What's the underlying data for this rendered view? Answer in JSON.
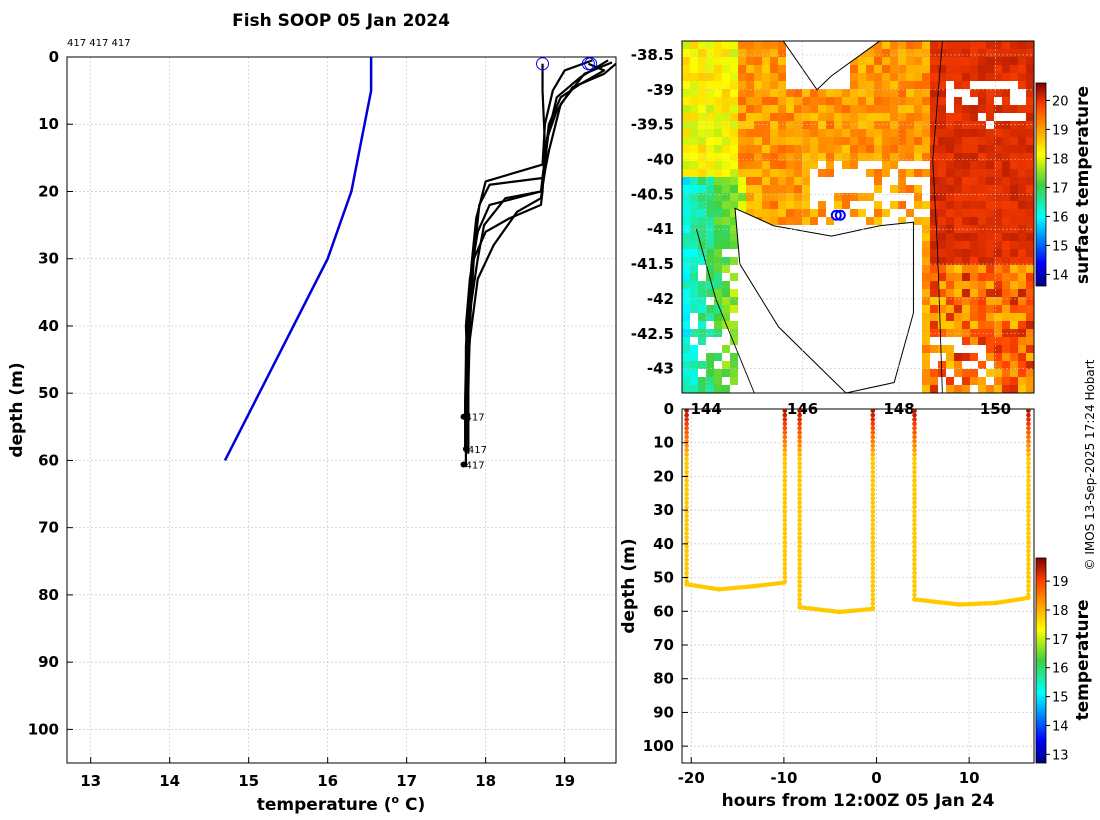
{
  "profile_chart": {
    "type": "line",
    "title": "Fish SOOP 05 Jan 2024",
    "xlabel_main": "temperature (",
    "xlabel_sup": "o",
    "xlabel_end": " C)",
    "ylabel": "depth (m)",
    "xlim": [
      12.7,
      19.65
    ],
    "ylim": [
      105,
      0
    ],
    "xticks": [
      13,
      14,
      15,
      16,
      17,
      18,
      19
    ],
    "yticks": [
      0,
      10,
      20,
      30,
      40,
      50,
      60,
      70,
      80,
      90,
      100
    ],
    "top_label": "417 417 417",
    "climatology": {
      "name": "climatology",
      "color": "#0000dd",
      "points": [
        [
          16.55,
          0
        ],
        [
          16.55,
          5
        ],
        [
          16.3,
          20
        ],
        [
          16.0,
          30
        ],
        [
          14.7,
          60
        ]
      ]
    },
    "profiles": [
      {
        "points": [
          [
            18.72,
            1
          ],
          [
            18.72,
            5
          ],
          [
            18.75,
            13
          ],
          [
            18.72,
            20
          ],
          [
            18.7,
            22
          ],
          [
            18.3,
            24
          ],
          [
            18.0,
            26
          ],
          [
            17.85,
            30
          ],
          [
            17.8,
            36
          ],
          [
            17.75,
            43
          ],
          [
            17.75,
            50
          ],
          [
            17.75,
            54
          ]
        ]
      },
      {
        "points": [
          [
            19.3,
            1
          ],
          [
            19.5,
            2
          ],
          [
            19.2,
            4
          ],
          [
            18.95,
            6
          ],
          [
            18.8,
            10
          ],
          [
            18.75,
            15
          ],
          [
            18.7,
            20
          ],
          [
            18.05,
            22
          ],
          [
            17.9,
            26
          ],
          [
            17.8,
            33
          ],
          [
            17.75,
            40
          ],
          [
            17.78,
            50
          ],
          [
            17.78,
            59
          ]
        ]
      },
      {
        "points": [
          [
            19.65,
            1
          ],
          [
            19.5,
            2.5
          ],
          [
            19.1,
            4.5
          ],
          [
            18.9,
            8
          ],
          [
            18.78,
            12
          ],
          [
            18.75,
            17
          ],
          [
            18.7,
            21
          ],
          [
            18.4,
            23
          ],
          [
            18.1,
            28
          ],
          [
            17.9,
            33
          ],
          [
            17.8,
            42
          ],
          [
            17.75,
            52
          ],
          [
            17.75,
            61
          ]
        ]
      },
      {
        "points": [
          [
            19.55,
            0.5
          ],
          [
            19.2,
            3
          ],
          [
            18.9,
            6
          ],
          [
            18.8,
            11
          ],
          [
            18.72,
            18
          ],
          [
            18.05,
            19
          ],
          [
            17.92,
            22
          ],
          [
            17.85,
            30
          ],
          [
            17.8,
            40
          ],
          [
            17.78,
            50
          ],
          [
            17.78,
            58
          ]
        ]
      },
      {
        "points": [
          [
            19.35,
            0.5
          ],
          [
            19.0,
            2
          ],
          [
            18.85,
            5
          ],
          [
            18.75,
            10
          ],
          [
            18.72,
            16
          ],
          [
            18.0,
            18.5
          ],
          [
            17.88,
            24
          ],
          [
            17.82,
            31
          ],
          [
            17.76,
            41
          ],
          [
            17.74,
            51
          ],
          [
            17.74,
            58
          ]
        ]
      },
      {
        "points": [
          [
            19.6,
            0.8
          ],
          [
            19.25,
            2.5
          ],
          [
            18.95,
            7
          ],
          [
            18.8,
            14
          ],
          [
            18.7,
            20
          ],
          [
            18.25,
            21
          ],
          [
            17.98,
            25
          ],
          [
            17.9,
            30
          ],
          [
            17.8,
            38
          ],
          [
            17.76,
            47
          ],
          [
            17.76,
            57
          ]
        ]
      }
    ],
    "start_markers": [
      [
        18.72,
        1
      ],
      [
        19.3,
        1
      ],
      [
        19.33,
        1
      ]
    ],
    "end_labels": [
      {
        "text": "417",
        "x": 17.72,
        "y": 53.5
      },
      {
        "text": "417",
        "x": 17.75,
        "y": 58.3
      },
      {
        "text": "417",
        "x": 17.72,
        "y": 60.6
      }
    ],
    "end_dots": [
      [
        17.72,
        53.5
      ],
      [
        17.75,
        58.3
      ],
      [
        17.72,
        60.6
      ]
    ]
  },
  "map_chart": {
    "type": "heatmap",
    "xticks": [
      144,
      146,
      148,
      150
    ],
    "yticks": [
      -38.5,
      -39,
      -39.5,
      -40,
      -40.5,
      -41,
      -41.5,
      -42,
      -42.5,
      -43
    ],
    "xlim": [
      143.5,
      150.8
    ],
    "ylim": [
      -43.35,
      -38.3
    ],
    "colorbar_label": "surface temperature",
    "colorbar_ticks": [
      14,
      15,
      16,
      17,
      18,
      19,
      20
    ],
    "colorbar_range": [
      13.6,
      20.6
    ],
    "track_marker": [
      146.7,
      -40.8
    ]
  },
  "timeseries_chart": {
    "type": "scatter",
    "xlabel": "hours from 12:00Z 05 Jan 24",
    "ylabel": "depth (m)",
    "xlim": [
      -21,
      17
    ],
    "ylim": [
      105,
      0
    ],
    "xticks": [
      -20,
      -10,
      0,
      10
    ],
    "yticks": [
      0,
      10,
      20,
      30,
      40,
      50,
      60,
      70,
      80,
      90,
      100
    ],
    "colorbar_label": "temperature",
    "colorbar_ticks": [
      13,
      14,
      15,
      16,
      17,
      18,
      19
    ],
    "colorbar_range": [
      12.7,
      19.8
    ],
    "segments": [
      {
        "t_start": -20.5,
        "t_end": -9.9,
        "depths": [
          [
            -20.5,
            52
          ],
          [
            -17,
            53.5
          ],
          [
            -13,
            52.5
          ],
          [
            -10,
            51.5
          ]
        ]
      },
      {
        "t_start": -8.3,
        "t_end": -0.4,
        "depths": [
          [
            -8.3,
            58.8
          ],
          [
            -4,
            60.2
          ],
          [
            -0.4,
            59.3
          ]
        ]
      },
      {
        "t_start": 4.1,
        "t_end": 16.4,
        "depths": [
          [
            4.1,
            56.5
          ],
          [
            9,
            58
          ],
          [
            13,
            57.5
          ],
          [
            16.4,
            56
          ]
        ]
      }
    ],
    "casts": [
      -20.5,
      -9.9,
      -8.3,
      -0.4,
      4.1,
      16.4
    ],
    "cast_bottoms": [
      52,
      51.5,
      58.8,
      59.3,
      56.5,
      56
    ]
  },
  "watermark": "© IMOS 13-Sep-2025 17:24 Hobart"
}
